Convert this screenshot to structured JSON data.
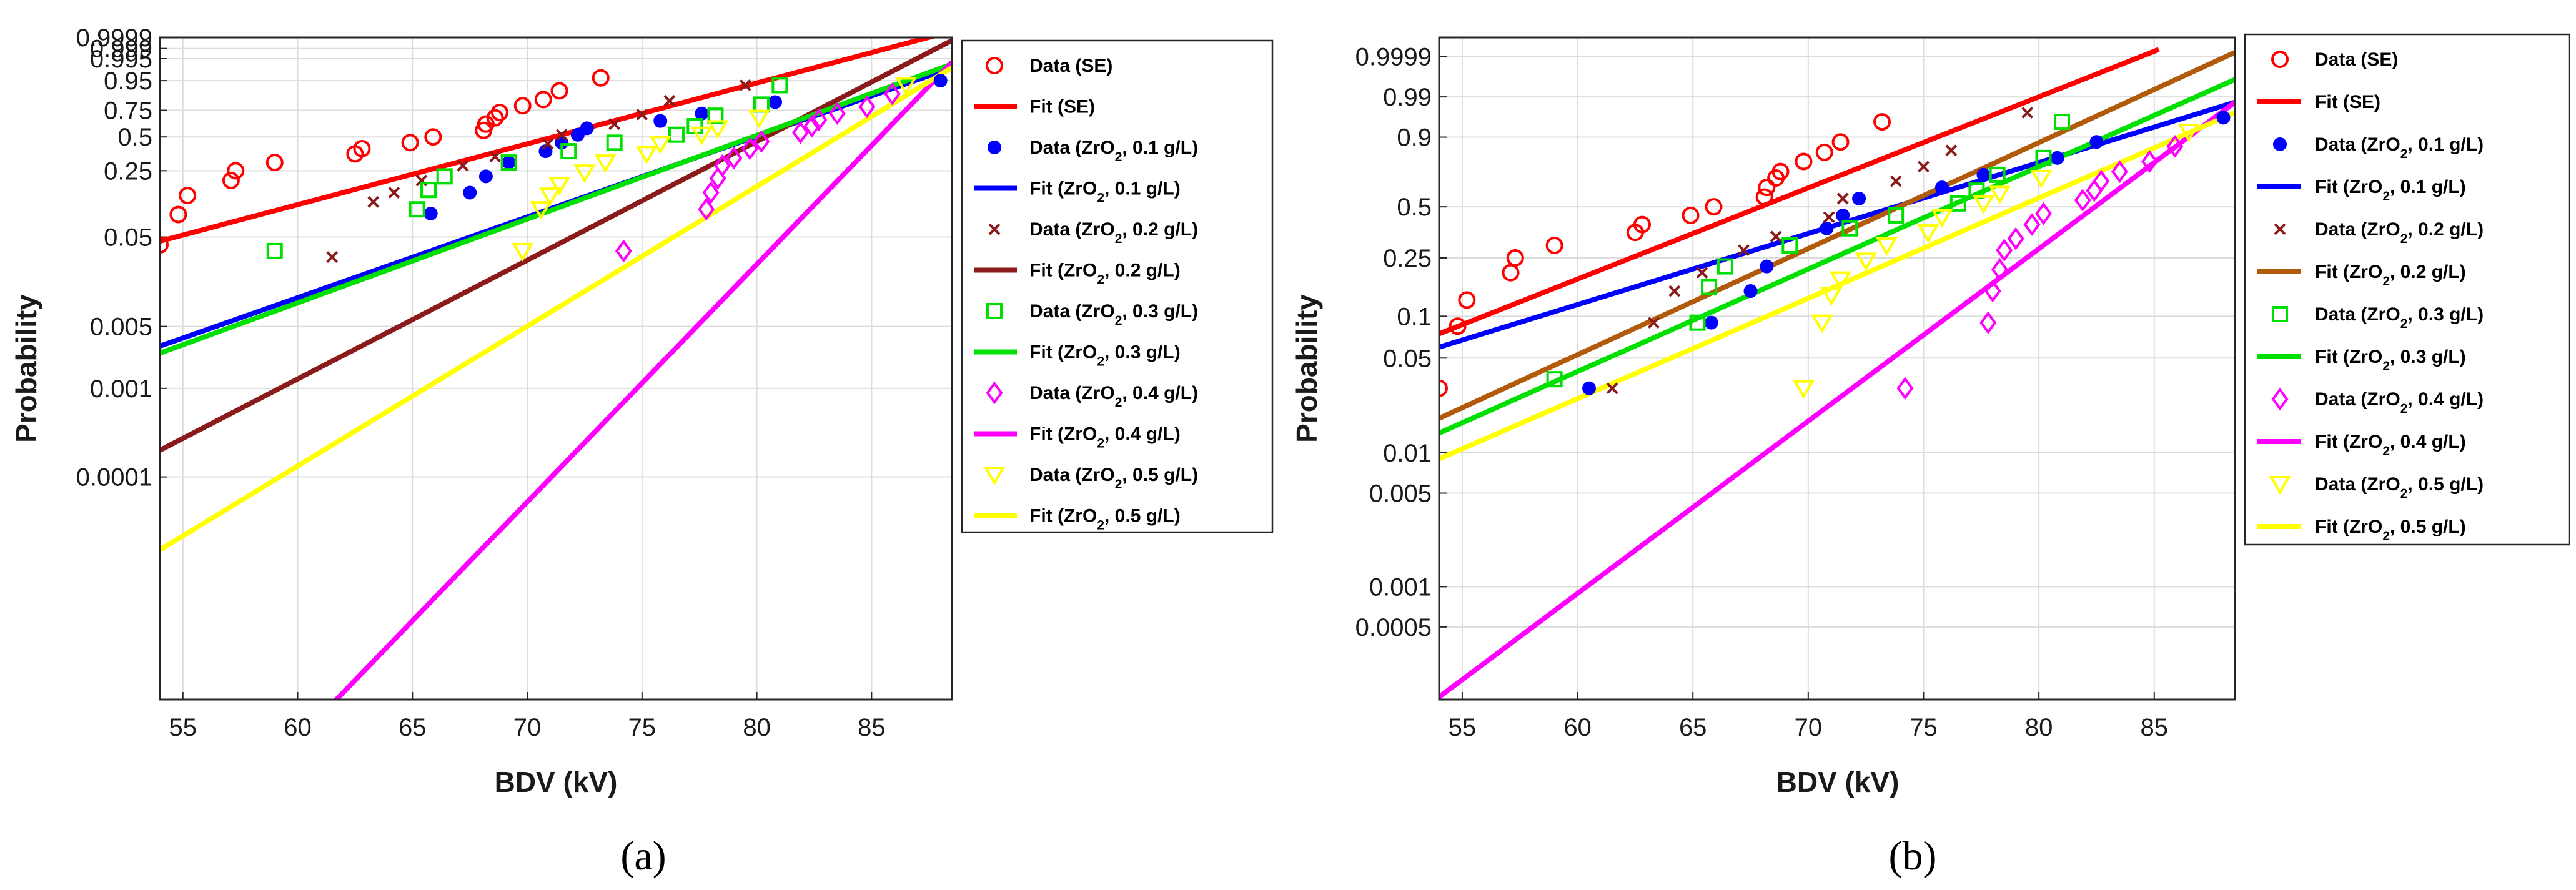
{
  "chart_data": [
    {
      "type": "scatter",
      "panel_caption": "(a)",
      "xlabel": "BDV (kV)",
      "ylabel": "Probability",
      "xlim": [
        54,
        88.5
      ],
      "x_ticks": [
        55,
        60,
        65,
        70,
        75,
        80,
        85
      ],
      "y_ticks": [
        {
          "p": 0.9999,
          "label": "0.9999"
        },
        {
          "p": 0.999,
          "label": "0.999"
        },
        {
          "p": 0.995,
          "label": "0.995"
        },
        {
          "p": 0.95,
          "label": "0.95"
        },
        {
          "p": 0.75,
          "label": "0.75"
        },
        {
          "p": 0.5,
          "label": "0.5"
        },
        {
          "p": 0.25,
          "label": "0.25"
        },
        {
          "p": 0.05,
          "label": "0.05"
        },
        {
          "p": 0.005,
          "label": "0.005"
        },
        {
          "p": 0.001,
          "label": "0.001"
        },
        {
          "p": 0.0001,
          "label": "0.0001"
        }
      ],
      "series": [
        {
          "name": "SE",
          "data_label": "Data (SE)",
          "fit_label": "Fit (SE)",
          "color": "#ff0000",
          "marker": "circle",
          "x": [
            54.0,
            54.8,
            55.2,
            57.1,
            57.3,
            59.0,
            62.5,
            62.8,
            64.9,
            65.9,
            68.1,
            68.2,
            68.6,
            68.8,
            69.8,
            70.7,
            71.4,
            73.2
          ],
          "y": [
            0.041,
            0.088,
            0.14,
            0.2,
            0.25,
            0.3,
            0.36,
            0.4,
            0.45,
            0.5,
            0.56,
            0.62,
            0.68,
            0.73,
            0.79,
            0.84,
            0.9,
            0.96
          ],
          "fit": {
            "x": [
              54.0,
              88.5
            ],
            "y": [
              0.045,
              0.99998
            ]
          }
        },
        {
          "name": "ZrO2 0.1",
          "data_label": "Data (ZrO₂, 0.1 g/L)",
          "fit_label": "Fit (ZrO₂, 0.1 g/L)",
          "color": "#0000ff",
          "marker": "dot",
          "x": [
            65.8,
            67.5,
            68.2,
            69.2,
            70.8,
            71.5,
            72.2,
            72.6,
            75.8,
            77.6,
            80.8,
            88.0
          ],
          "y": [
            0.09,
            0.15,
            0.22,
            0.3,
            0.38,
            0.45,
            0.52,
            0.58,
            0.65,
            0.72,
            0.82,
            0.95
          ],
          "fit": {
            "x": [
              54.0,
              88.5
            ],
            "y": [
              0.003,
              0.985
            ]
          }
        },
        {
          "name": "ZrO2 0.2",
          "data_label": "Data (ZrO₂, 0.2 g/L)",
          "fit_label": "Fit (ZrO₂, 0.2 g/L)",
          "color": "#8b1a1a",
          "marker": "x",
          "x": [
            61.5,
            63.3,
            64.2,
            65.4,
            67.2,
            68.6,
            70.9,
            71.5,
            73.8,
            75.0,
            76.2,
            79.5
          ],
          "y": [
            0.03,
            0.12,
            0.15,
            0.2,
            0.28,
            0.34,
            0.44,
            0.52,
            0.62,
            0.71,
            0.83,
            0.93
          ],
          "fit": {
            "x": [
              54.0,
              88.5
            ],
            "y": [
              0.0002,
              0.9998
            ]
          }
        },
        {
          "name": "ZrO2 0.3",
          "data_label": "Data (ZrO₂, 0.3 g/L)",
          "fit_label": "Fit (ZrO₂, 0.3 g/L)",
          "color": "#00e000",
          "marker": "square",
          "x": [
            59.0,
            65.2,
            65.7,
            66.4,
            69.2,
            71.8,
            73.8,
            76.5,
            77.3,
            78.2,
            80.2,
            81.0
          ],
          "y": [
            0.035,
            0.1,
            0.16,
            0.22,
            0.3,
            0.38,
            0.45,
            0.52,
            0.6,
            0.7,
            0.8,
            0.93
          ],
          "fit": {
            "x": [
              54.0,
              88.5
            ],
            "y": [
              0.0025,
              0.99
            ]
          }
        },
        {
          "name": "ZrO2 0.4",
          "data_label": "Data (ZrO₂, 0.4 g/L)",
          "fit_label": "Fit (ZrO₂, 0.4 g/L)",
          "color": "#ff00ff",
          "marker": "diamond",
          "x": [
            74.2,
            77.8,
            78.0,
            78.3,
            78.5,
            79.0,
            79.7,
            80.2,
            81.9,
            82.4,
            82.7,
            83.5,
            84.8,
            85.9
          ],
          "y": [
            0.035,
            0.1,
            0.15,
            0.21,
            0.28,
            0.33,
            0.4,
            0.46,
            0.54,
            0.6,
            0.66,
            0.72,
            0.78,
            0.88
          ],
          "fit": {
            "x": [
              61.0,
              88.5
            ],
            "y": [
              2e-07,
              0.992
            ]
          }
        },
        {
          "name": "ZrO2 0.5",
          "data_label": "Data (ZrO₂, 0.5 g/L)",
          "fit_label": "Fit (ZrO₂, 0.5 g/L)",
          "color": "#ffff00",
          "marker": "triangle",
          "x": [
            69.8,
            70.6,
            71.0,
            71.4,
            72.5,
            73.4,
            75.2,
            75.8,
            77.6,
            78.3,
            80.1,
            86.5
          ],
          "y": [
            0.035,
            0.1,
            0.14,
            0.18,
            0.24,
            0.3,
            0.36,
            0.44,
            0.52,
            0.58,
            0.68,
            0.93
          ],
          "fit": {
            "x": [
              54.0,
              88.5
            ],
            "y": [
              1.5e-05,
              0.985
            ]
          }
        }
      ]
    },
    {
      "type": "scatter",
      "panel_caption": "(b)",
      "xlabel": "BDV (kV)",
      "ylabel": "Probability",
      "xlim": [
        54,
        88.5
      ],
      "x_ticks": [
        55,
        60,
        65,
        70,
        75,
        80,
        85
      ],
      "y_ticks": [
        {
          "p": 0.9999,
          "label": "0.9999"
        },
        {
          "p": 0.99,
          "label": "0.99"
        },
        {
          "p": 0.9,
          "label": "0.9"
        },
        {
          "p": 0.5,
          "label": "0.5"
        },
        {
          "p": 0.25,
          "label": "0.25"
        },
        {
          "p": 0.1,
          "label": "0.1"
        },
        {
          "p": 0.05,
          "label": "0.05"
        },
        {
          "p": 0.01,
          "label": "0.01"
        },
        {
          "p": 0.005,
          "label": "0.005"
        },
        {
          "p": 0.001,
          "label": "0.001"
        },
        {
          "p": 0.0005,
          "label": "0.0005"
        }
      ],
      "series": [
        {
          "name": "SE",
          "data_label": "Data (SE)",
          "fit_label": "Fit (SE)",
          "color": "#ff0000",
          "marker": "circle",
          "x": [
            54.0,
            54.8,
            55.2,
            57.1,
            57.3,
            59.0,
            62.5,
            62.8,
            64.9,
            65.9,
            68.1,
            68.2,
            68.6,
            68.8,
            69.8,
            70.7,
            71.4,
            73.2
          ],
          "y": [
            0.03,
            0.085,
            0.13,
            0.2,
            0.25,
            0.3,
            0.36,
            0.4,
            0.45,
            0.5,
            0.56,
            0.62,
            0.68,
            0.72,
            0.78,
            0.83,
            0.88,
            0.95
          ],
          "fit": {
            "x": [
              54.0,
              85.2
            ],
            "y": [
              0.075,
              0.99997
            ]
          }
        },
        {
          "name": "ZrO2 0.1",
          "data_label": "Data (ZrO₂, 0.1 g/L)",
          "fit_label": "Fit (ZrO₂, 0.1 g/L)",
          "color": "#0000ff",
          "marker": "dot",
          "x": [
            60.5,
            65.8,
            67.5,
            68.2,
            70.8,
            71.5,
            72.2,
            75.8,
            77.6,
            80.8,
            82.5,
            88.0
          ],
          "y": [
            0.03,
            0.09,
            0.15,
            0.22,
            0.38,
            0.45,
            0.55,
            0.62,
            0.7,
            0.8,
            0.88,
            0.96
          ],
          "fit": {
            "x": [
              54.0,
              88.5
            ],
            "y": [
              0.06,
              0.985
            ]
          }
        },
        {
          "name": "ZrO2 0.2",
          "data_label": "Data (ZrO₂, 0.2 g/L)",
          "fit_label": "Fit (ZrO₂, 0.2 g/L)",
          "color": "#b05a0a",
          "data_color": "#8b1a1a",
          "marker": "x",
          "x": [
            61.5,
            63.3,
            64.2,
            65.4,
            67.2,
            68.6,
            70.9,
            71.5,
            73.8,
            75.0,
            76.2,
            79.5
          ],
          "y": [
            0.03,
            0.09,
            0.15,
            0.2,
            0.28,
            0.34,
            0.44,
            0.55,
            0.66,
            0.75,
            0.84,
            0.97
          ],
          "fit": {
            "x": [
              54.0,
              88.5
            ],
            "y": [
              0.018,
              0.99995
            ]
          }
        },
        {
          "name": "ZrO2 0.3",
          "data_label": "Data (ZrO₂, 0.3 g/L)",
          "fit_label": "Fit (ZrO₂, 0.3 g/L)",
          "color": "#00e000",
          "marker": "square",
          "x": [
            59.0,
            65.2,
            65.7,
            66.4,
            69.2,
            71.8,
            73.8,
            76.5,
            77.3,
            78.2,
            80.2,
            81.0
          ],
          "y": [
            0.035,
            0.09,
            0.16,
            0.22,
            0.3,
            0.38,
            0.45,
            0.52,
            0.6,
            0.7,
            0.8,
            0.95
          ],
          "fit": {
            "x": [
              54.0,
              88.5
            ],
            "y": [
              0.014,
              0.998
            ]
          }
        },
        {
          "name": "ZrO2 0.4",
          "data_label": "Data (ZrO₂, 0.4 g/L)",
          "fit_label": "Fit (ZrO₂, 0.4 g/L)",
          "color": "#ff00ff",
          "marker": "diamond",
          "x": [
            74.2,
            77.8,
            78.0,
            78.3,
            78.5,
            79.0,
            79.7,
            80.2,
            81.9,
            82.4,
            82.7,
            83.5,
            84.8,
            85.9
          ],
          "y": [
            0.03,
            0.09,
            0.15,
            0.21,
            0.28,
            0.33,
            0.4,
            0.46,
            0.54,
            0.6,
            0.66,
            0.72,
            0.78,
            0.86
          ],
          "fit": {
            "x": [
              54.0,
              88.5
            ],
            "y": [
              0.00015,
              0.985
            ]
          }
        },
        {
          "name": "ZrO2 0.5",
          "data_label": "Data (ZrO₂, 0.5 g/L)",
          "fit_label": "Fit (ZrO₂, 0.5 g/L)",
          "color": "#ffff00",
          "marker": "triangle",
          "x": [
            69.8,
            70.6,
            71.0,
            71.4,
            72.5,
            73.4,
            75.2,
            75.8,
            77.6,
            78.3,
            80.1,
            86.5
          ],
          "y": [
            0.03,
            0.09,
            0.14,
            0.18,
            0.24,
            0.3,
            0.36,
            0.44,
            0.52,
            0.58,
            0.68,
            0.92
          ],
          "fit": {
            "x": [
              54.0,
              88.5
            ],
            "y": [
              0.009,
              0.97
            ]
          }
        }
      ]
    }
  ]
}
